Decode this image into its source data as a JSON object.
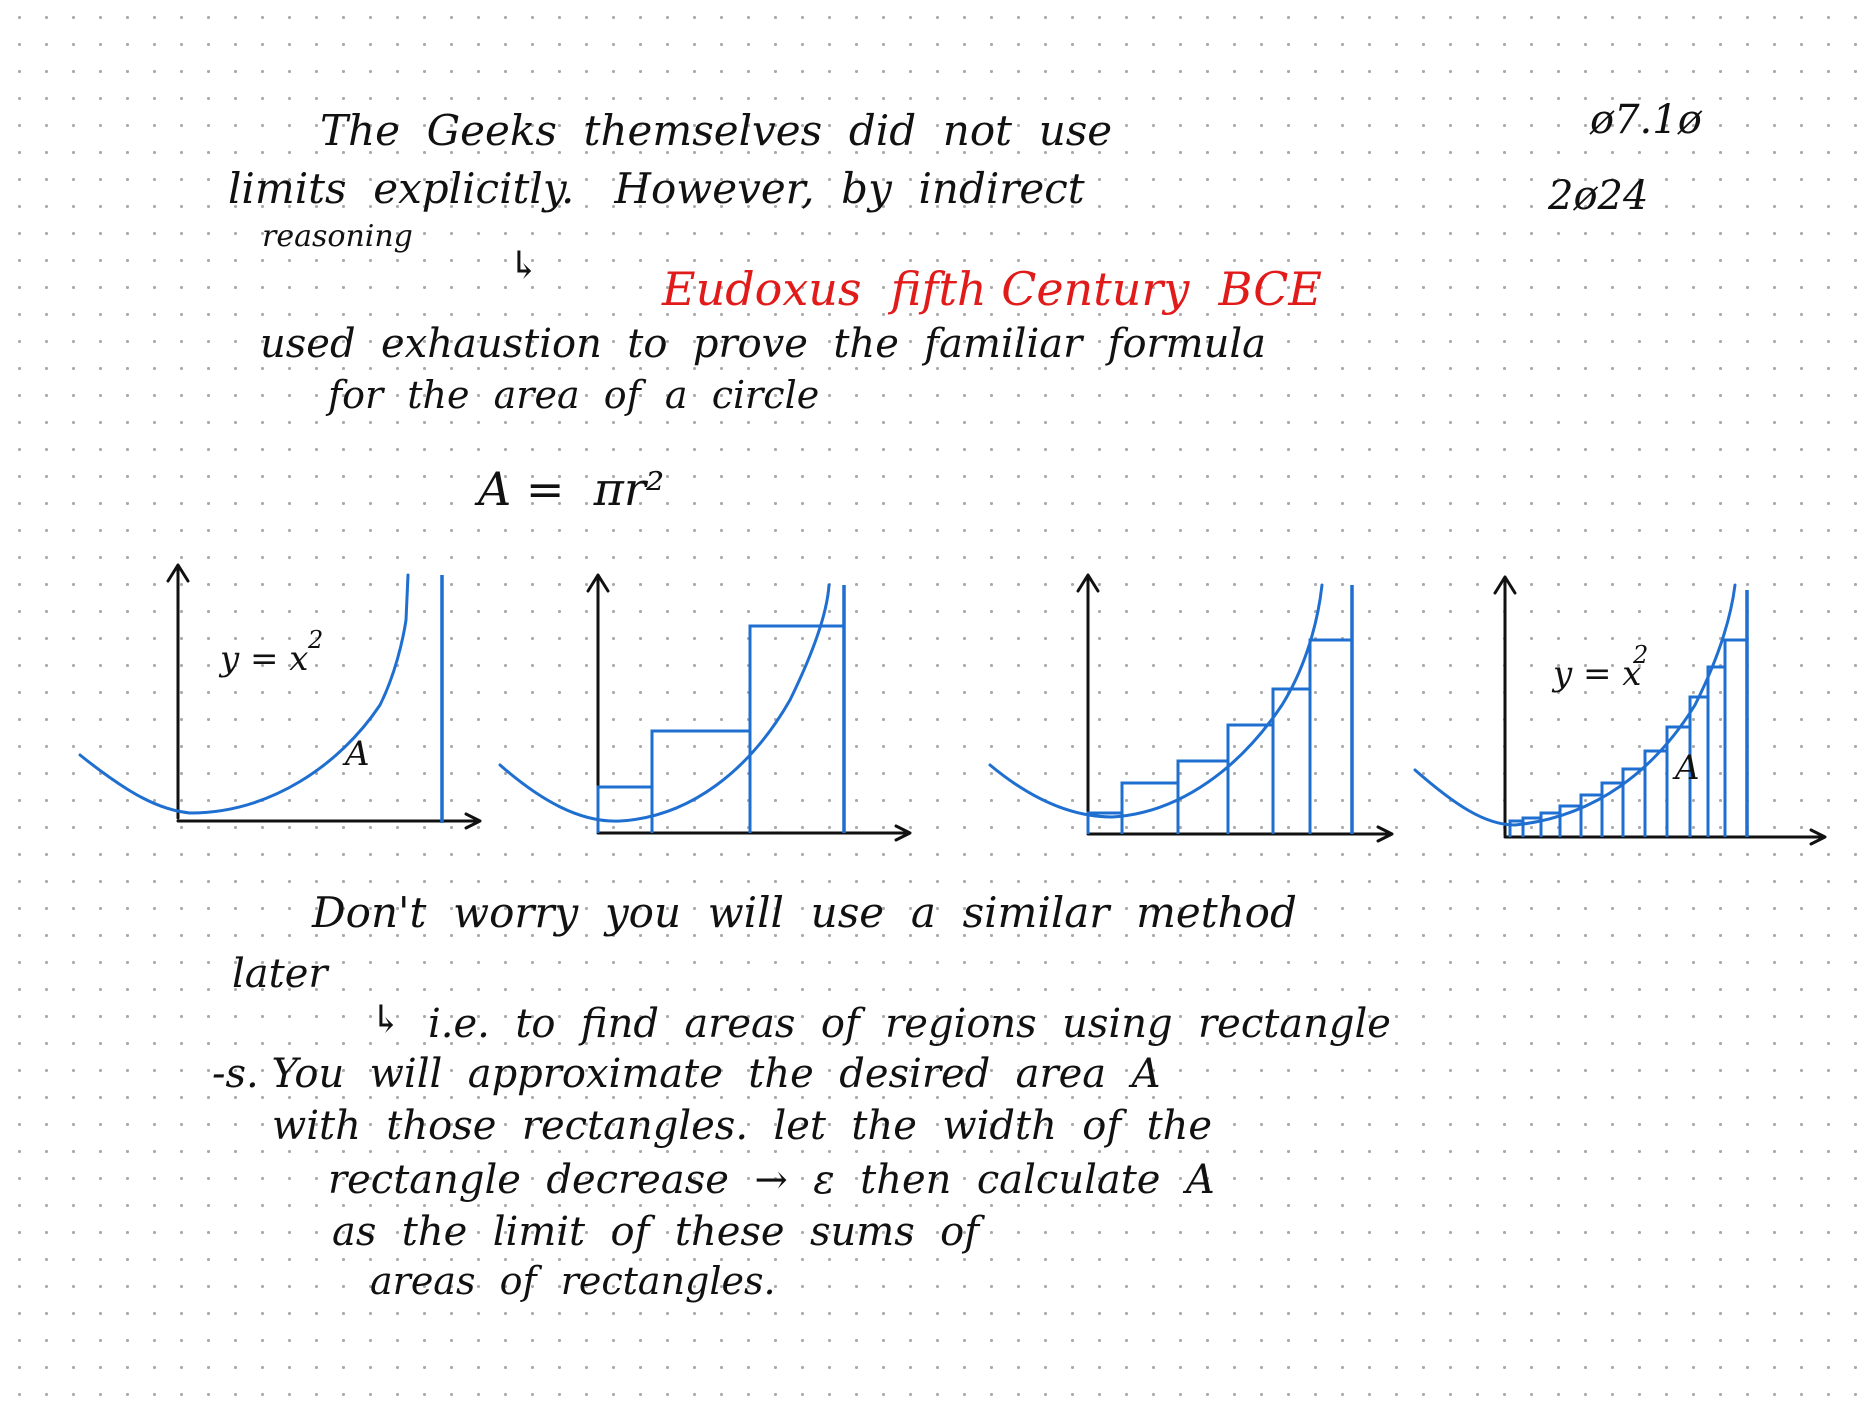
{
  "page": {
    "date": "ø7.1ø",
    "year": "2ø24"
  },
  "paragraph1": {
    "line1": "The  Geeks  themselves  did  not  use",
    "line2": "limits  explicitly.   However,  by  indirect",
    "line3": "reasoning",
    "arrow": "↳",
    "highlight": "Eudoxus  fifth Century  BCE",
    "line4": "used  exhaustion  to  prove  the  familiar  formula",
    "line5": "for  the  area  of  a  circle"
  },
  "formula": "A =  πr²",
  "figures": [
    {
      "curve_label": "y = x",
      "curve_exp": "2",
      "area_label": "A",
      "rectangles": 0
    },
    {
      "curve_label": "",
      "curve_exp": "",
      "area_label": "",
      "rectangles": 3
    },
    {
      "curve_label": "",
      "curve_exp": "",
      "area_label": "",
      "rectangles": 6
    },
    {
      "curve_label": "y = x",
      "curve_exp": "2",
      "area_label": "A",
      "rectangles": 12
    }
  ],
  "paragraph2": {
    "line1": "Don't  worry  you  will  use  a  similar  method",
    "line2": "later",
    "arrow": "↳",
    "line3": "i.e.  to  find  areas  of  regions  using  rectangle",
    "line4": "-s. You  will  approximate  the  desired  area  A",
    "line5": "with  those  rectangles.  let  the  width  of  the",
    "line6": "rectangle  decrease  →  ε  then  calculate  A",
    "line7": "as  the  limit  of  these  sums  of",
    "line8": "areas  of  rectangles."
  },
  "colors": {
    "ink": "#111111",
    "highlight": "#e11a1a",
    "plot": "#1f6fd0",
    "grid_dots": "#a9a9a9",
    "background": "#ffffff"
  }
}
